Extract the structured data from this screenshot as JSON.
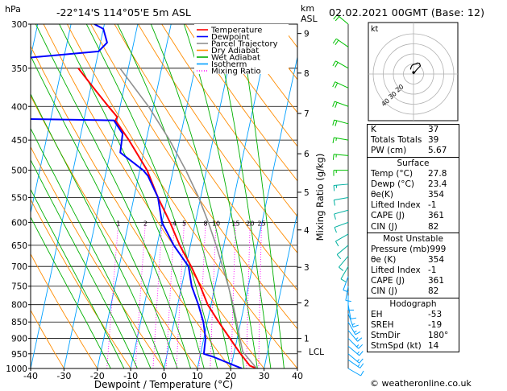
{
  "station": "-22°14'S 114°05'E 5m ASL",
  "date_label": "02.02.2021 00GMT (Base: 12)",
  "hpa_unit": "hPa",
  "km_unit": "km",
  "asl_unit": "ASL",
  "hodo_label": "kt",
  "footer": "© weatheronline.co.uk",
  "mixing_axis_label": "Mixing Ratio (g/kg)",
  "legend": [
    {
      "label": "Temperature",
      "color": "#ff0000",
      "dash": ""
    },
    {
      "label": "Dewpoint",
      "color": "#0000ff",
      "dash": ""
    },
    {
      "label": "Parcel Trajectory",
      "color": "#909090",
      "dash": ""
    },
    {
      "label": "Dry Adiabat",
      "color": "#ff8c00",
      "dash": ""
    },
    {
      "label": "Wet Adiabat",
      "color": "#00b000",
      "dash": ""
    },
    {
      "label": "Isotherm",
      "color": "#00a0ff",
      "dash": ""
    },
    {
      "label": "Mixing Ratio",
      "color": "#ff00ff",
      "dash": "1,2"
    }
  ],
  "indices": {
    "top": [
      {
        "label": "K",
        "value": "37"
      },
      {
        "label": "Totals Totals",
        "value": "39"
      },
      {
        "label": "PW (cm)",
        "value": "5.67"
      }
    ],
    "surface_title": "Surface",
    "surface": [
      {
        "label": "Temp (°C)",
        "value": "27.8"
      },
      {
        "label": "Dewp (°C)",
        "value": "23.4"
      },
      {
        "label": "θe(K)",
        "value": "354"
      },
      {
        "label": "Lifted Index",
        "value": "-1"
      },
      {
        "label": "CAPE (J)",
        "value": "361"
      },
      {
        "label": "CIN (J)",
        "value": "82"
      }
    ],
    "mu_title": "Most Unstable",
    "mu": [
      {
        "label": "Pressure (mb)",
        "value": "999"
      },
      {
        "label": "θe (K)",
        "value": "354"
      },
      {
        "label": "Lifted Index",
        "value": "-1"
      },
      {
        "label": "CAPE (J)",
        "value": "361"
      },
      {
        "label": "CIN (J)",
        "value": "82"
      }
    ],
    "hodo_title": "Hodograph",
    "hodo": [
      {
        "label": "EH",
        "value": "-53"
      },
      {
        "label": "SREH",
        "value": "-19"
      },
      {
        "label": "StmDir",
        "value": "180°"
      },
      {
        "label": "StmSpd (kt)",
        "value": "14"
      }
    ]
  },
  "chart_data": {
    "type": "line",
    "title": "",
    "xlabel": "Dewpoint / Temperature (°C)",
    "ylabel": "hPa",
    "xlim": [
      -40,
      40
    ],
    "ylim": [
      1000,
      300
    ],
    "x_ticks": [
      -40,
      -30,
      -20,
      -10,
      0,
      10,
      20,
      30,
      40
    ],
    "pressure_levels": [
      300,
      350,
      400,
      450,
      500,
      550,
      600,
      650,
      700,
      750,
      800,
      850,
      900,
      950,
      1000
    ],
    "height_km_ticks": [
      {
        "km": "9",
        "p": 310
      },
      {
        "km": "8",
        "p": 356
      },
      {
        "km": "7",
        "p": 410
      },
      {
        "km": "6",
        "p": 472
      },
      {
        "km": "5",
        "p": 540
      },
      {
        "km": "4",
        "p": 616
      },
      {
        "km": "3",
        "p": 702
      },
      {
        "km": "2",
        "p": 795
      },
      {
        "km": "1",
        "p": 900
      }
    ],
    "lcl": {
      "label": "LCL",
      "p": 943
    },
    "mixing_ratio_labels": [
      "1",
      "2",
      "3",
      "4",
      "5",
      "8",
      "10",
      "15",
      "20",
      "25"
    ],
    "mixing_ratio_values": [
      1,
      2,
      3,
      4,
      5,
      8,
      10,
      15,
      20,
      25
    ],
    "series": [
      {
        "name": "Temperature",
        "color": "#ff0000",
        "p": [
          1000,
          990,
          950,
          900,
          850,
          800,
          750,
          700,
          650,
          600,
          550,
          500,
          450,
          420,
          415,
          400,
          380,
          350
        ],
        "t": [
          27.8,
          25.5,
          22.0,
          17.8,
          13.4,
          9.0,
          5.6,
          1.6,
          -3.2,
          -7.6,
          -12.8,
          -17.8,
          -25.2,
          -30.5,
          -30.2,
          -33.5,
          -38.0,
          -45.0
        ]
      },
      {
        "name": "Dewpoint",
        "color": "#0000ff",
        "p": [
          1000,
          990,
          960,
          950,
          900,
          850,
          800,
          750,
          700,
          650,
          600,
          550,
          510,
          500,
          470,
          440,
          420,
          417,
          400,
          380,
          340,
          330,
          320,
          305,
          300
        ],
        "t": [
          23.4,
          21.0,
          14.0,
          11.0,
          10.5,
          8.8,
          6.2,
          3.0,
          0.8,
          -5.0,
          -10.0,
          -12.8,
          -17.2,
          -19.0,
          -27.0,
          -27.5,
          -31.0,
          -69.0,
          -72.0,
          -82.0,
          -68.0,
          -40.0,
          -38.0,
          -40.0,
          -43.0
        ]
      },
      {
        "name": "Parcel Trajectory",
        "color": "#909090",
        "p": [
          1000,
          943,
          900,
          850,
          800,
          750,
          700,
          650,
          600,
          550,
          500,
          450,
          400,
          350
        ],
        "t": [
          27.8,
          22.5,
          20.8,
          18.8,
          16.6,
          14.0,
          11.0,
          7.7,
          3.9,
          -0.6,
          -6.2,
          -13.0,
          -21.5,
          -32.5
        ]
      }
    ],
    "wind_barbs": {
      "p": [
        1000,
        970,
        950,
        925,
        900,
        875,
        850,
        825,
        800,
        775,
        750,
        725,
        700,
        675,
        650,
        625,
        600,
        575,
        550,
        525,
        500,
        475,
        450,
        425,
        400,
        375,
        350,
        325,
        300
      ],
      "dir": [
        120,
        125,
        130,
        130,
        135,
        140,
        150,
        160,
        170,
        180,
        190,
        200,
        210,
        220,
        230,
        240,
        250,
        255,
        260,
        265,
        270,
        275,
        280,
        285,
        290,
        295,
        300,
        305,
        310
      ],
      "spd": [
        10,
        15,
        15,
        15,
        15,
        15,
        15,
        15,
        10,
        10,
        10,
        10,
        10,
        10,
        10,
        10,
        10,
        10,
        10,
        15,
        15,
        15,
        15,
        20,
        20,
        20,
        20,
        20,
        20
      ]
    },
    "hodograph": {
      "rings_kt": [
        10,
        20,
        30,
        40
      ],
      "ring_labels": [
        "20",
        "30",
        "40"
      ],
      "u": [
        0.0,
        2.5,
        4.8,
        6.8,
        6.0,
        4.0,
        2.0,
        0.0,
        -1.5,
        -2.5,
        -3.0
      ],
      "v": [
        0.0,
        3.5,
        6.0,
        8.0,
        10.5,
        11.0,
        10.0,
        9.5,
        8.5,
        6.5,
        4.5
      ]
    }
  }
}
